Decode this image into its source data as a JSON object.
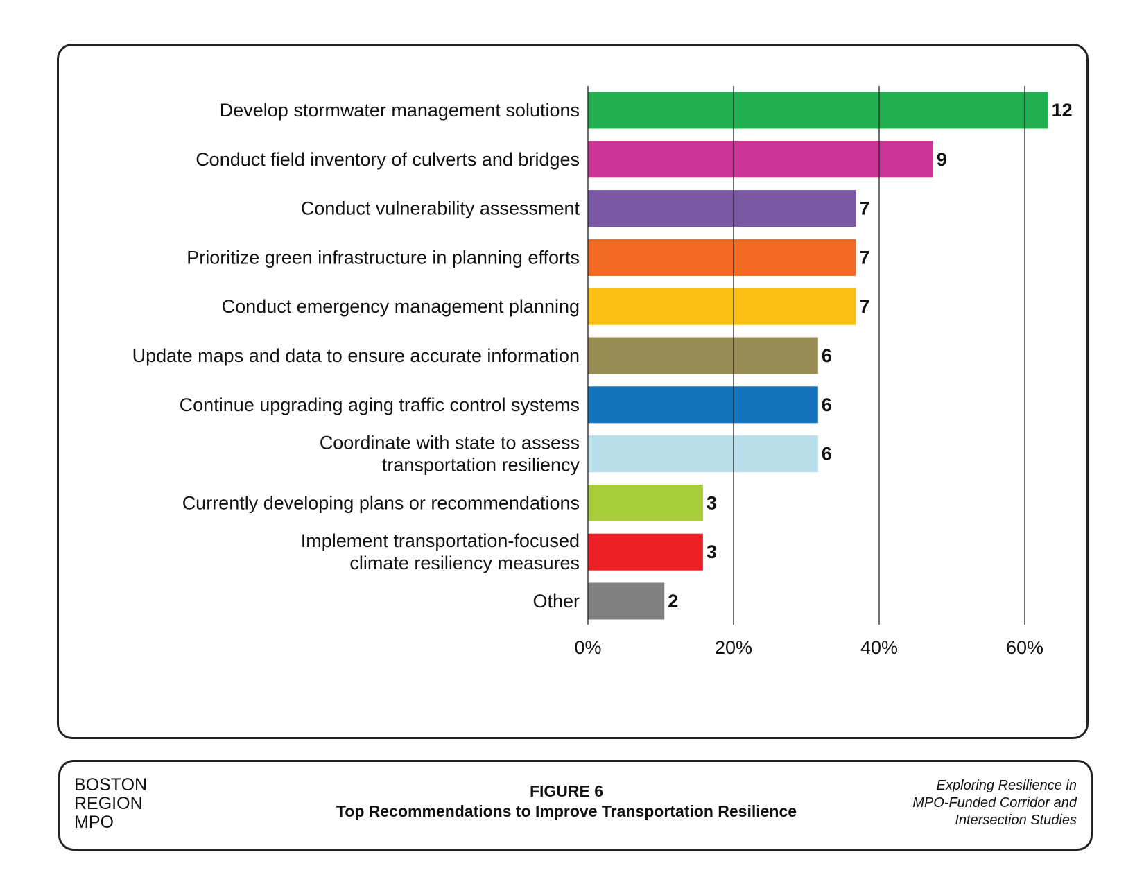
{
  "chart_data": {
    "type": "bar",
    "orientation": "horizontal",
    "categories": [
      "Develop stormwater management solutions",
      "Conduct field inventory of culverts and bridges",
      "Conduct vulnerability assessment",
      "Prioritize green infrastructure in planning efforts",
      "Conduct emergency management planning",
      "Update maps and data to ensure accurate information",
      "Continue upgrading aging traffic control systems",
      "Coordinate with state to assess\ntransportation resiliency",
      "Currently developing plans or recommendations",
      "Implement transportation-focused\nclimate resiliency measures",
      "Other"
    ],
    "values_percent": [
      63.2,
      47.4,
      36.8,
      36.8,
      36.8,
      31.6,
      31.6,
      31.6,
      15.8,
      15.8,
      10.5
    ],
    "data_labels": [
      "12",
      "9",
      "7",
      "7",
      "7",
      "6",
      "6",
      "6",
      "3",
      "3",
      "2"
    ],
    "colors": [
      "#21b04f",
      "#cc3596",
      "#7a58a3",
      "#f26a24",
      "#fcbf15",
      "#978c53",
      "#1474bb",
      "#b9dfea",
      "#a8cd3a",
      "#ec2026",
      "#808080"
    ],
    "xlim": [
      0,
      60
    ],
    "xticks": [
      "0%",
      "20%",
      "40%",
      "60%"
    ],
    "xtick_values": [
      0,
      20,
      40,
      60
    ],
    "grid": "vertical",
    "title": "Top Recommendations to Improve Transportation Resilience"
  },
  "footer": {
    "org": [
      "BOSTON",
      "REGION",
      "MPO"
    ],
    "figure_number": "FIGURE 6",
    "figure_title": "Top Recommendations to Improve Transportation Resilience",
    "series_title": [
      "Exploring Resilience in",
      "MPO-Funded Corridor and",
      "Intersection Studies"
    ]
  }
}
